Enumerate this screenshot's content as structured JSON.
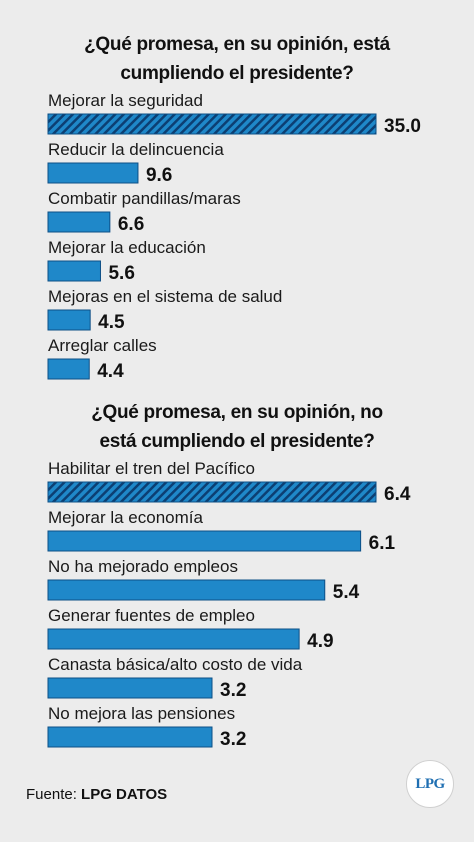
{
  "colors": {
    "bar": "#1f88c9",
    "bar_highlight_stripe": "#0c3f73",
    "background": "#ececec"
  },
  "chart_data": [
    {
      "type": "bar",
      "orientation": "horizontal",
      "title_lines": [
        "¿Qué promesa, en su opinión, está",
        "cumpliendo el presidente?"
      ],
      "categories": [
        "Mejorar la seguridad",
        "Reducir la delincuencia",
        "Combatir pandillas/maras",
        "Mejorar la educación",
        "Mejoras en el sistema de salud",
        "Arreglar calles"
      ],
      "values": [
        35.0,
        9.6,
        6.6,
        5.6,
        4.5,
        4.4
      ],
      "value_labels": [
        "35.0",
        "9.6",
        "6.6",
        "5.6",
        "4.5",
        "4.4"
      ],
      "highlight_index": 0
    },
    {
      "type": "bar",
      "orientation": "horizontal",
      "title_lines": [
        "¿Qué promesa, en su opinión, no",
        "está cumpliendo el presidente?"
      ],
      "categories": [
        "Habilitar el tren del Pacífico",
        "Mejorar la economía",
        "No ha mejorado empleos",
        "Generar fuentes de empleo",
        "Canasta básica/alto costo de vida",
        "No mejora las pensiones"
      ],
      "values": [
        6.4,
        6.1,
        5.4,
        4.9,
        3.2,
        3.2
      ],
      "value_labels": [
        "6.4",
        "6.1",
        "5.4",
        "4.9",
        "3.2",
        "3.2"
      ],
      "highlight_index": 0
    }
  ],
  "footer": {
    "prefix": "Fuente: ",
    "source": "LPG DATOS"
  },
  "logo": {
    "text": "LPG"
  }
}
